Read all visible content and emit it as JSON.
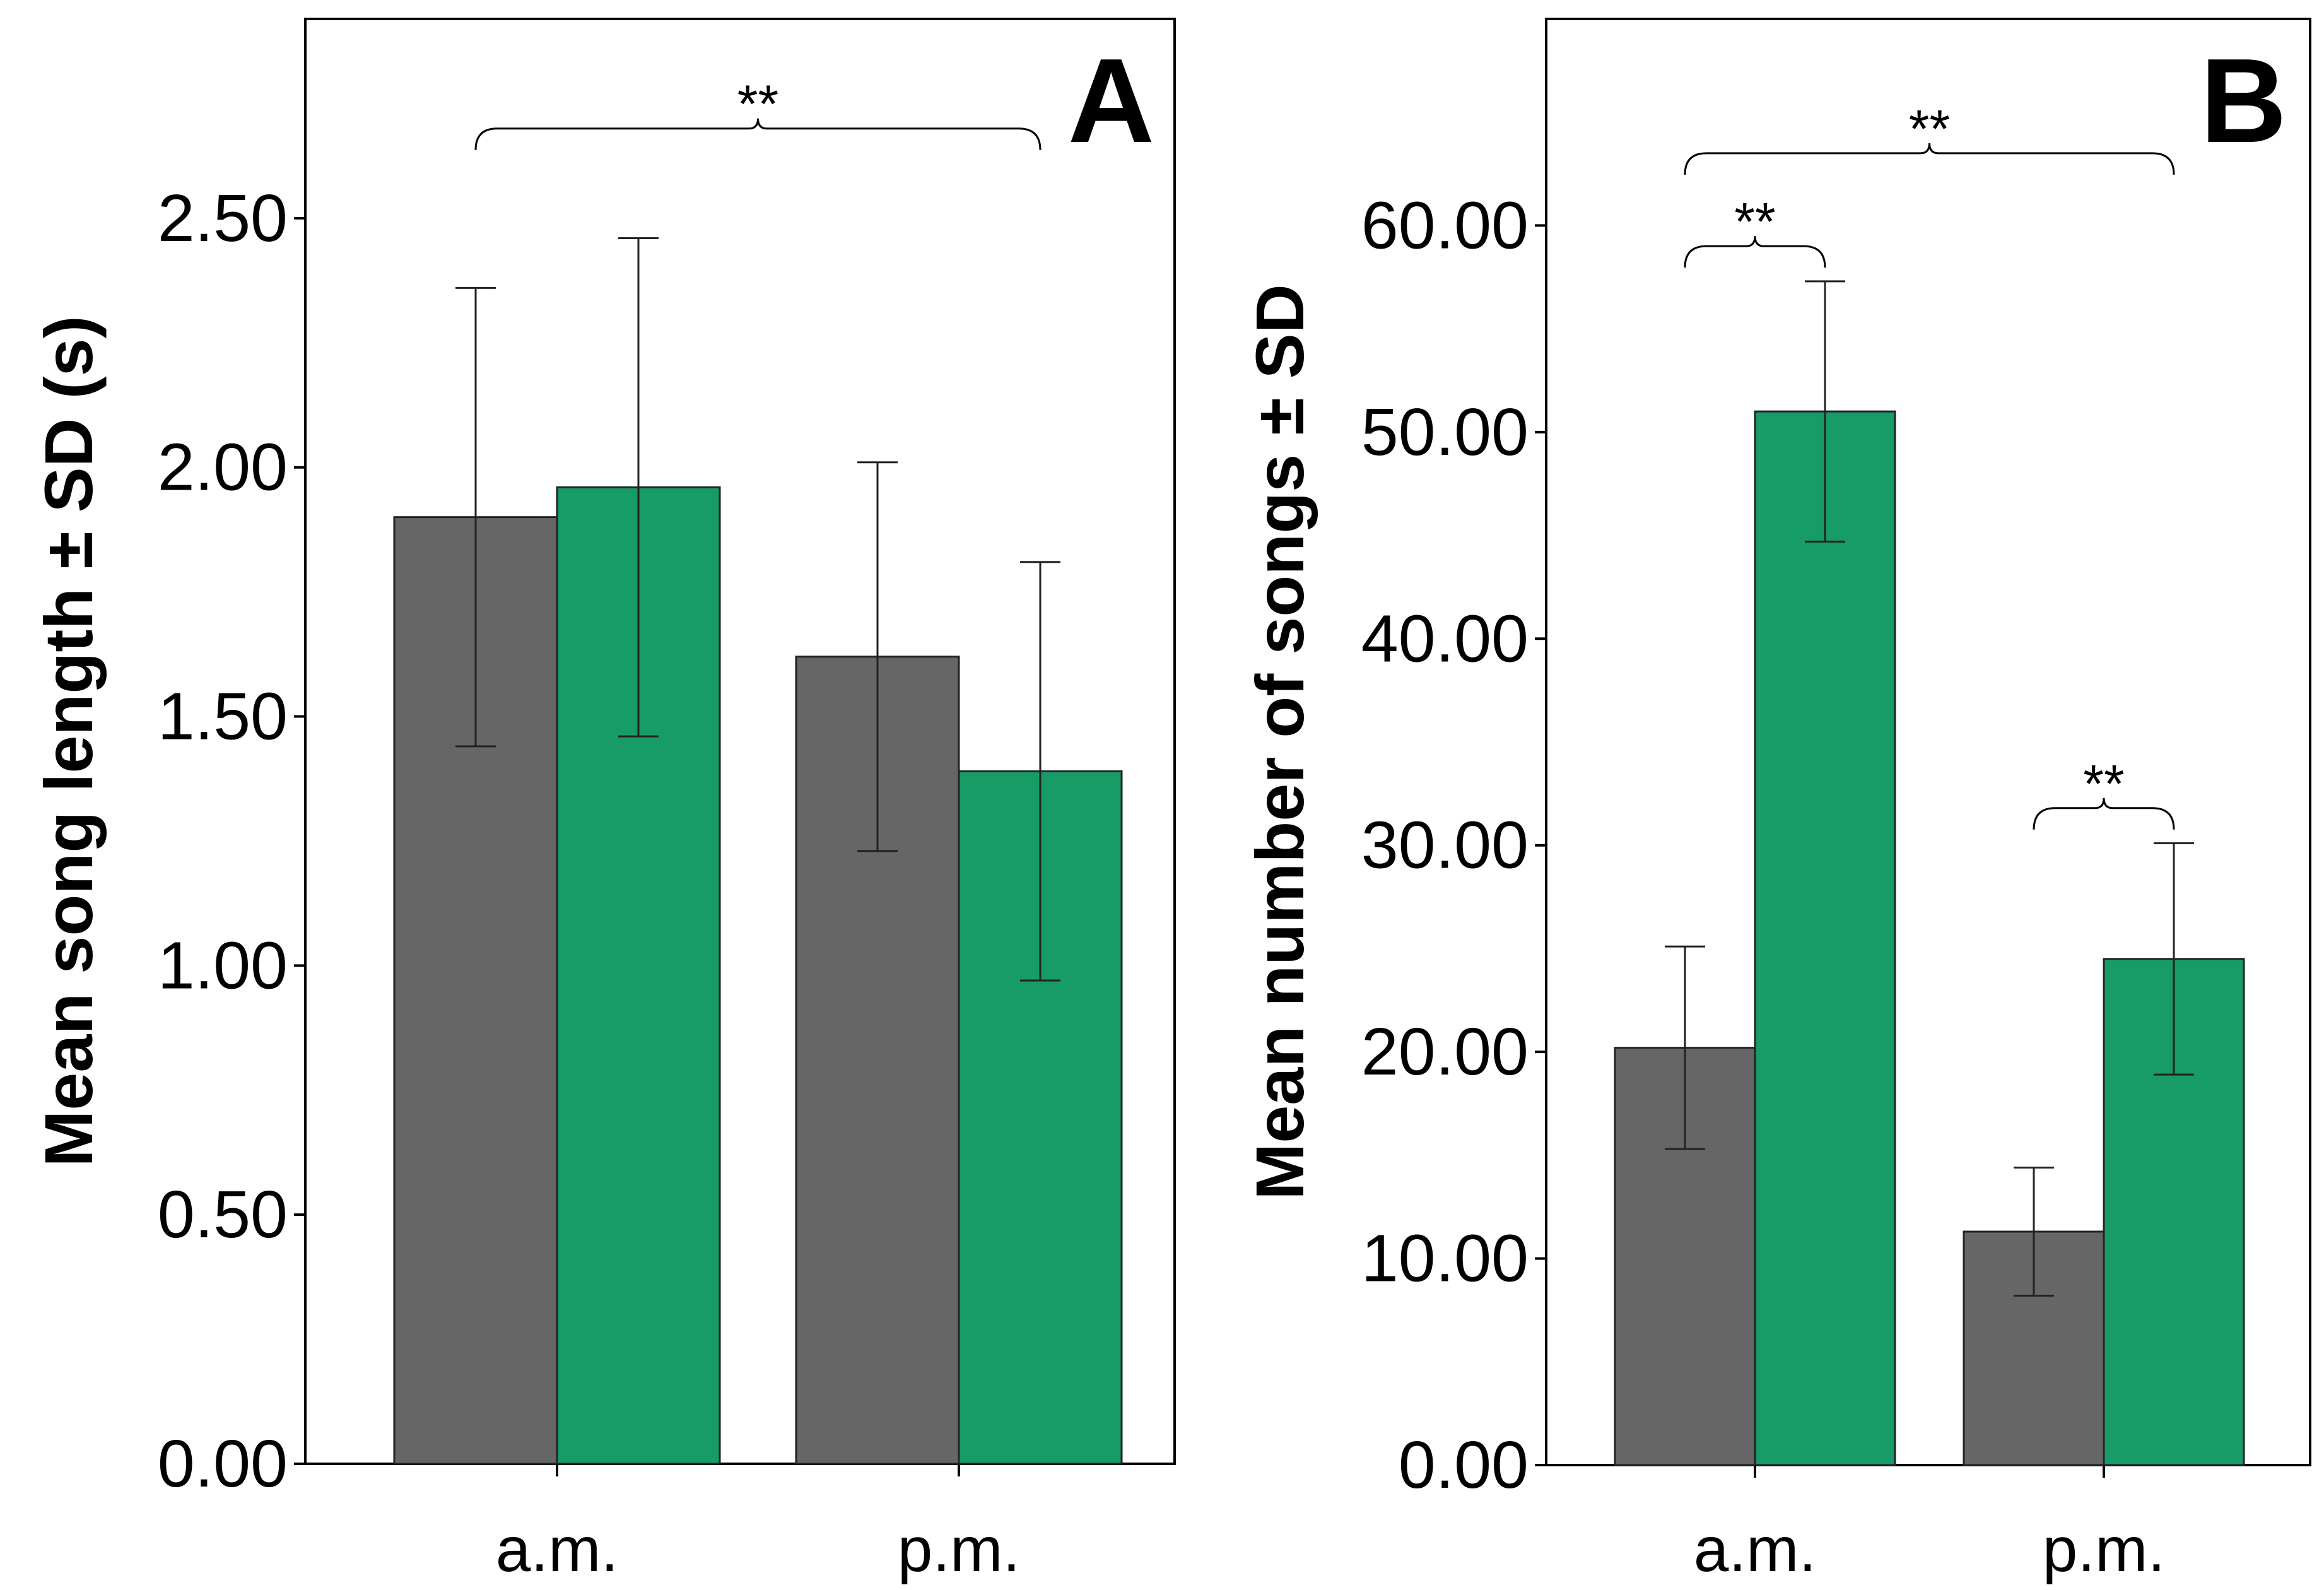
{
  "figure": {
    "background": "#ffffff",
    "series_colors": {
      "gray": "#666666",
      "green": "#179b67"
    }
  },
  "chart_data": [
    {
      "type": "bar",
      "panel": "A",
      "title": "",
      "xlabel": "",
      "ylabel": "Mean song length ± SD (s)",
      "ylim": [
        0,
        2.9
      ],
      "yticks": [
        0,
        0.5,
        1.0,
        1.5,
        2.0,
        2.5
      ],
      "ytick_labels": [
        "0.00",
        "0.50",
        "1.00",
        "1.50",
        "2.00",
        "2.50"
      ],
      "categories": [
        "a.m.",
        "p.m."
      ],
      "series": [
        {
          "name": "gray",
          "color": "#666666",
          "values": [
            1.9,
            1.62
          ],
          "errors": [
            0.46,
            0.39
          ]
        },
        {
          "name": "green",
          "color": "#179b67",
          "values": [
            1.96,
            1.39
          ],
          "errors": [
            0.5,
            0.42
          ]
        }
      ],
      "significance": [
        {
          "label": "**",
          "from": [
            0,
            0
          ],
          "to": [
            1,
            1
          ],
          "y": 2.68
        }
      ]
    },
    {
      "type": "bar",
      "panel": "B",
      "title": "",
      "xlabel": "",
      "ylabel": "Mean number of songs ± SD",
      "ylim": [
        0,
        70
      ],
      "yticks": [
        0,
        10,
        20,
        30,
        40,
        50,
        60
      ],
      "ytick_labels": [
        "0.00",
        "10.00",
        "20.00",
        "30.00",
        "40.00",
        "50.00",
        "60.00"
      ],
      "categories": [
        "a.m.",
        "p.m."
      ],
      "series": [
        {
          "name": "gray",
          "color": "#666666",
          "values": [
            20.2,
            11.3
          ],
          "errors": [
            4.9,
            3.1
          ]
        },
        {
          "name": "green",
          "color": "#179b67",
          "values": [
            51.0,
            24.5
          ],
          "errors": [
            6.3,
            5.6
          ]
        }
      ],
      "significance": [
        {
          "label": "**",
          "from": [
            0,
            0
          ],
          "to": [
            1,
            1
          ],
          "y": 63.5
        },
        {
          "label": "**",
          "from": [
            0,
            0
          ],
          "to": [
            0,
            1
          ],
          "y": 59.0
        },
        {
          "label": "**",
          "from": [
            1,
            0
          ],
          "to": [
            1,
            1
          ],
          "y": 31.8
        }
      ]
    }
  ]
}
